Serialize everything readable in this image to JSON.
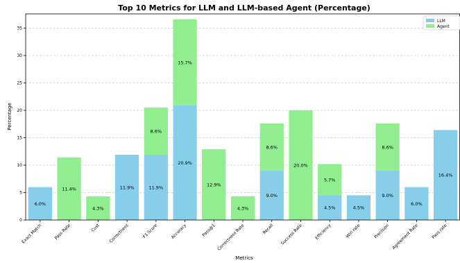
{
  "chart_data": {
    "type": "bar",
    "stacked": true,
    "title": "Top 10 Metrics for LLM and LLM-based Agent (Percentage)",
    "xlabel": "Metrics",
    "ylabel": "Percentage",
    "ylim": [
      0,
      37.6
    ],
    "yticks": [
      0,
      5,
      10,
      15,
      20,
      25,
      30,
      35
    ],
    "grid": "horizontal dashed",
    "legend_position": "top-right",
    "categories": [
      "Exact Match",
      "Pass Rate",
      "Cost",
      "Correctness",
      "F1 Score",
      "Accuracy",
      "Pass@1",
      "Correctness Rate",
      "Recall",
      "Success Rate",
      "Efficiency",
      "Win rate",
      "Precision",
      "Agreement Rate",
      "Pass rate"
    ],
    "series": [
      {
        "name": "LLM",
        "color": "#87CEEB",
        "values": [
          6.0,
          0,
          0,
          11.9,
          11.9,
          20.9,
          0,
          0,
          9.0,
          0,
          4.5,
          4.5,
          9.0,
          6.0,
          16.4
        ],
        "labels": [
          "6.0%",
          "",
          "",
          "11.9%",
          "11.9%",
          "20.9%",
          "",
          "",
          "9.0%",
          "",
          "4.5%",
          "4.5%",
          "9.0%",
          "6.0%",
          "16.4%"
        ]
      },
      {
        "name": "Agent",
        "color": "#90EE90",
        "values": [
          0,
          11.4,
          4.3,
          0,
          8.6,
          15.7,
          12.9,
          4.3,
          8.6,
          20.0,
          5.7,
          0,
          8.6,
          0,
          0
        ],
        "labels": [
          "",
          "11.4%",
          "4.3%",
          "",
          "8.6%",
          "15.7%",
          "12.9%",
          "4.3%",
          "8.6%",
          "20.0%",
          "5.7%",
          "",
          "8.6%",
          "",
          ""
        ]
      }
    ]
  }
}
